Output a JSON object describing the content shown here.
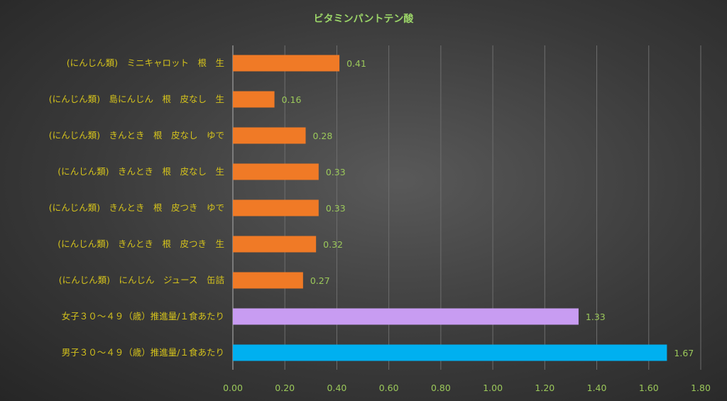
{
  "chart_data": {
    "type": "bar",
    "orientation": "horizontal",
    "title": "ビタミンパントテン酸",
    "categories": [
      "(にんじん類)　ミニキャロット　根　生",
      "(にんじん類)　島にんじん　根　皮なし　生",
      "(にんじん類)　きんとき　根　皮なし　ゆで",
      "(にんじん類)　きんとき　根　皮なし　生",
      "(にんじん類)　きんとき　根　皮つき　ゆで",
      "(にんじん類)　きんとき　根　皮つき　生",
      "(にんじん類)　にんじん　ジュース　缶詰",
      "女子３０～４９（歳）推進量/１食あたり",
      "男子３０～４９（歳）推進量/１食あたり"
    ],
    "values": [
      0.41,
      0.16,
      0.28,
      0.33,
      0.33,
      0.32,
      0.27,
      1.33,
      1.67
    ],
    "value_labels": [
      "0.41",
      "0.16",
      "0.28",
      "0.33",
      "0.33",
      "0.32",
      "0.27",
      "1.33",
      "1.67"
    ],
    "bar_colors": [
      "#f07a26",
      "#f07a26",
      "#f07a26",
      "#f07a26",
      "#f07a26",
      "#f07a26",
      "#f07a26",
      "#c89cf2",
      "#00b0f0"
    ],
    "xlim": [
      0,
      1.8
    ],
    "x_ticks": [
      "0.00",
      "0.20",
      "0.40",
      "0.60",
      "0.80",
      "1.00",
      "1.20",
      "1.40",
      "1.60",
      "1.80"
    ],
    "grid": "vertical",
    "legend": "none",
    "xlabel": "",
    "ylabel": ""
  }
}
